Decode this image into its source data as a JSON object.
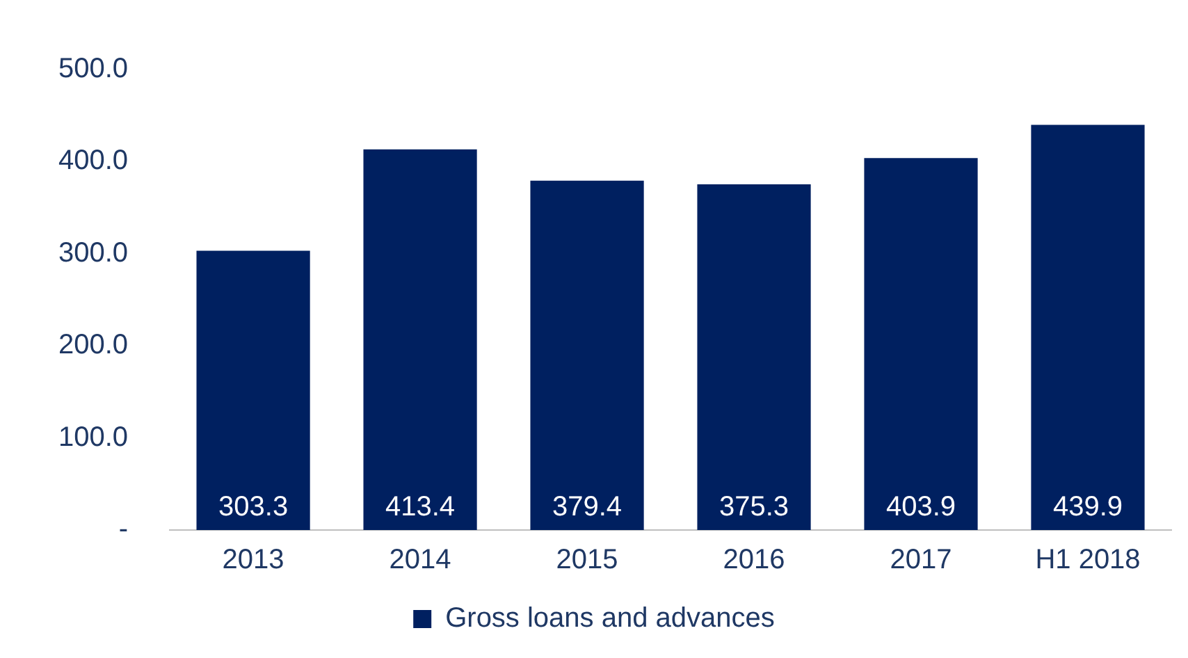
{
  "chart_data": {
    "type": "bar",
    "categories": [
      "2013",
      "2014",
      "2015",
      "2016",
      "2017",
      "H1 2018"
    ],
    "series": [
      {
        "name": "Gross loans and advances",
        "color": "#002060",
        "values": [
          303.3,
          413.4,
          379.4,
          375.3,
          403.9,
          439.9
        ]
      }
    ],
    "ylim": [
      0,
      500
    ],
    "yticks": [
      {
        "value": 0,
        "label": "-"
      },
      {
        "value": 100,
        "label": "100.0"
      },
      {
        "value": 200,
        "label": "200.0"
      },
      {
        "value": 300,
        "label": "300.0"
      },
      {
        "value": 400,
        "label": "400.0"
      },
      {
        "value": 500,
        "label": "500.0"
      }
    ],
    "data_labels": true,
    "grid": false,
    "legend": "bottom"
  }
}
